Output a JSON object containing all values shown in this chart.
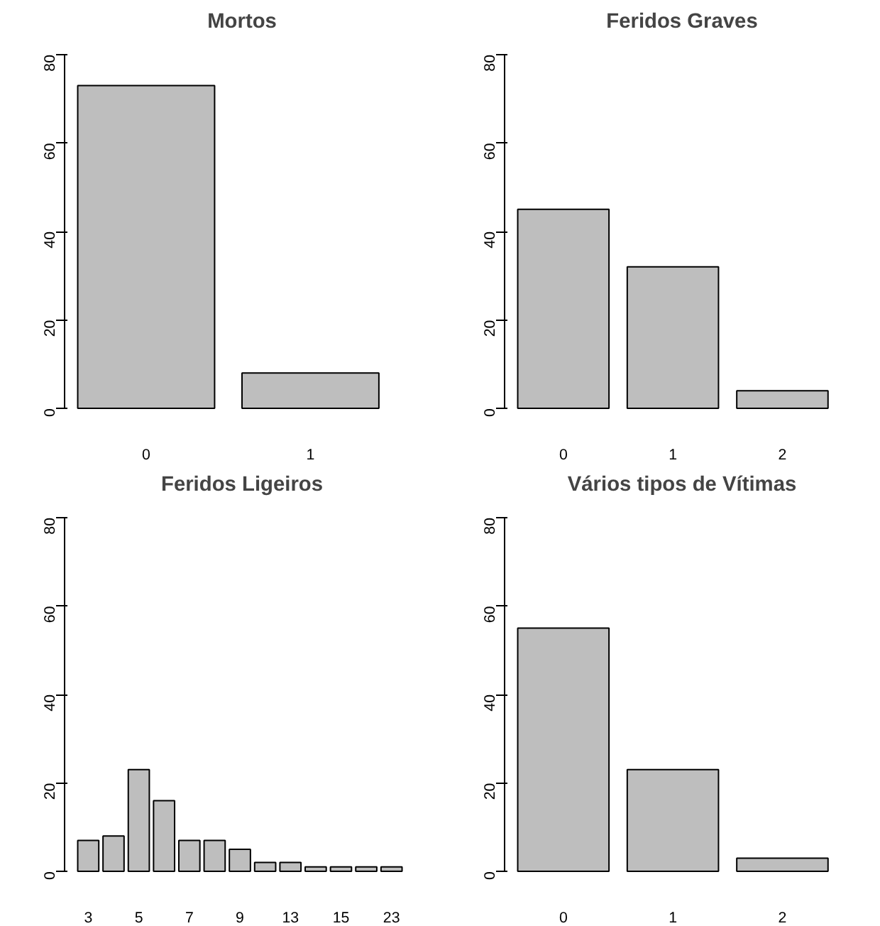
{
  "chart_data": [
    {
      "type": "bar",
      "title": "Mortos",
      "categories": [
        "0",
        "1"
      ],
      "values": [
        73,
        8
      ],
      "color": "#bebebe",
      "ylim": [
        0,
        80
      ],
      "yticks": [
        0,
        20,
        40,
        60,
        80
      ],
      "grid": false
    },
    {
      "type": "bar",
      "title": "Feridos Graves",
      "categories": [
        "0",
        "1",
        "2"
      ],
      "values": [
        45,
        32,
        4
      ],
      "color": "#bebebe",
      "ylim": [
        0,
        80
      ],
      "yticks": [
        0,
        20,
        40,
        60,
        80
      ],
      "grid": false
    },
    {
      "type": "bar",
      "title": "Feridos Ligeiros",
      "categories": [
        "3",
        null,
        "5",
        null,
        "7",
        null,
        "9",
        null,
        "13",
        null,
        "15",
        null,
        "23"
      ],
      "values": [
        7,
        8,
        23,
        16,
        7,
        7,
        5,
        2,
        2,
        1,
        1,
        1,
        1
      ],
      "color": "#bebebe",
      "ylim": [
        0,
        80
      ],
      "yticks": [
        0,
        20,
        40,
        60,
        80
      ],
      "grid": false
    },
    {
      "type": "bar",
      "title": "Vários tipos de Vítimas",
      "categories": [
        "0",
        "1",
        "2"
      ],
      "values": [
        55,
        23,
        3
      ],
      "color": "#bebebe",
      "ylim": [
        0,
        80
      ],
      "yticks": [
        0,
        20,
        40,
        60,
        80
      ],
      "grid": false
    }
  ]
}
